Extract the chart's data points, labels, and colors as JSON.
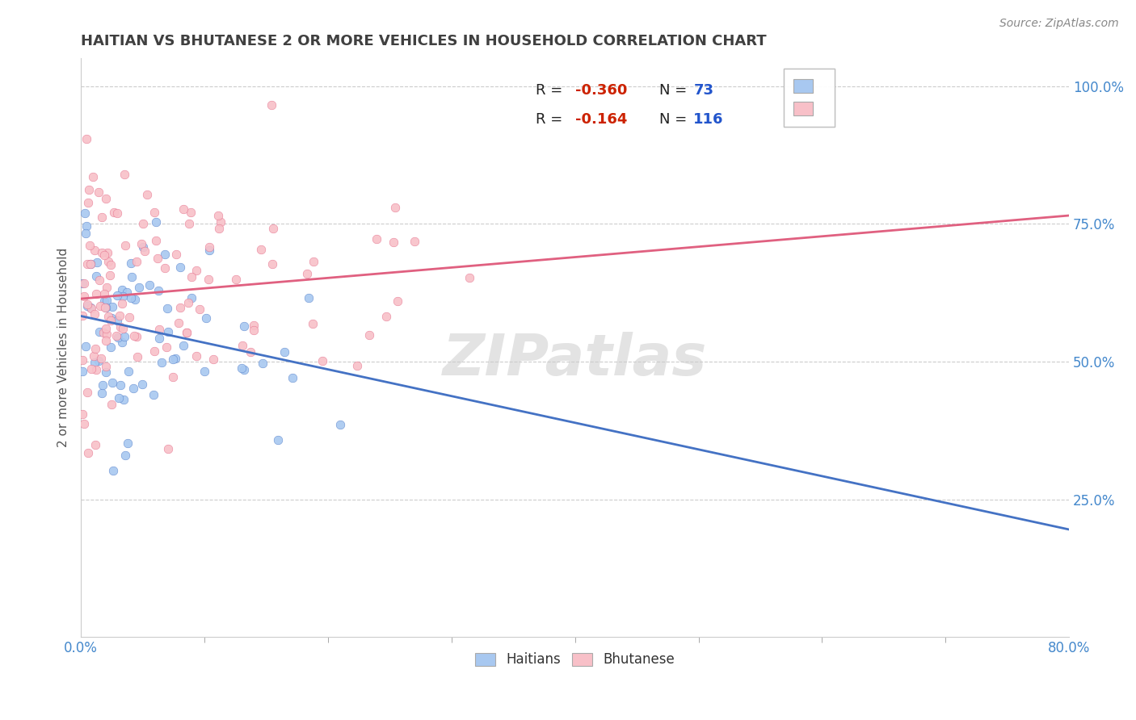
{
  "title": "HAITIAN VS BHUTANESE 2 OR MORE VEHICLES IN HOUSEHOLD CORRELATION CHART",
  "source_text": "Source: ZipAtlas.com",
  "ylabel": "2 or more Vehicles in Household",
  "x_min": 0.0,
  "x_max": 0.8,
  "y_min": 0.0,
  "y_max": 1.05,
  "x_tick_labels_left": "0.0%",
  "x_tick_labels_right": "80.0%",
  "y_ticks": [
    0.0,
    0.25,
    0.5,
    0.75,
    1.0
  ],
  "y_tick_labels": [
    "",
    "25.0%",
    "50.0%",
    "75.0%",
    "100.0%"
  ],
  "haitian_color": "#A8C8F0",
  "bhutanese_color": "#F8C0C8",
  "haitian_line_color": "#4472C4",
  "bhutanese_line_color": "#E06080",
  "haitian_R": -0.36,
  "haitian_N": 73,
  "bhutanese_R": -0.164,
  "bhutanese_N": 116,
  "watermark": "ZIPatlas",
  "background_color": "#FFFFFF",
  "grid_color": "#CCCCCC",
  "title_color": "#404040",
  "axis_label_color": "#555555",
  "tick_color": "#4488CC",
  "legend_R_color": "#CC2200",
  "legend_N_color": "#2255CC"
}
